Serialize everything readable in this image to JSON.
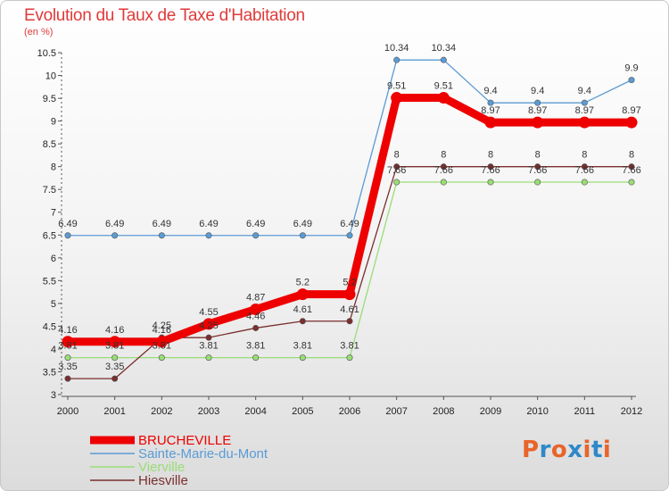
{
  "chart_data": {
    "type": "line",
    "title": "Evolution du Taux de Taxe d'Habitation",
    "subtitle": "(en %)",
    "x": [
      "2000",
      "2001",
      "2002",
      "2003",
      "2004",
      "2005",
      "2006",
      "2007",
      "2008",
      "2009",
      "2010",
      "2011",
      "2012"
    ],
    "ylim": [
      3,
      10.5
    ],
    "yticks": [
      "3",
      "3.5",
      "4",
      "4.5",
      "5",
      "5.5",
      "6",
      "6.5",
      "7",
      "7.5",
      "8",
      "8.5",
      "9",
      "9.5",
      "10",
      "10.5"
    ],
    "grid": false,
    "legend_position": "bottom-left",
    "series": [
      {
        "name": "BRUCHEVILLE",
        "color": "#ee0000",
        "values": [
          4.16,
          4.16,
          4.16,
          4.55,
          4.87,
          5.2,
          5.2,
          9.51,
          9.51,
          8.97,
          8.97,
          8.97,
          8.97
        ],
        "labels": [
          "4.16",
          "4.16",
          "4.16",
          "4.55",
          "4.87",
          "5.2",
          "5.2",
          "9.51",
          "9.51",
          "8.97",
          "8.97",
          "8.97",
          "8.97"
        ]
      },
      {
        "name": "Sainte-Marie-du-Mont",
        "color": "#5a9bd4",
        "values": [
          6.49,
          6.49,
          6.49,
          6.49,
          6.49,
          6.49,
          6.49,
          10.34,
          10.34,
          9.4,
          9.4,
          9.4,
          9.9
        ],
        "labels": [
          "6.49",
          "6.49",
          "6.49",
          "6.49",
          "6.49",
          "6.49",
          "6.49",
          "10.34",
          "10.34",
          "9.4",
          "9.4",
          "9.4",
          "9.9"
        ]
      },
      {
        "name": "Vierville",
        "color": "#99dd77",
        "values": [
          3.81,
          3.81,
          3.81,
          3.81,
          3.81,
          3.81,
          3.81,
          7.66,
          7.66,
          7.66,
          7.66,
          7.66,
          7.66
        ],
        "labels": [
          "3.81",
          "3.81",
          "3.81",
          "3.81",
          "3.81",
          "3.81",
          "3.81",
          "7.66",
          "7.66",
          "7.66",
          "7.66",
          "7.66",
          "7.66"
        ]
      },
      {
        "name": "Hiesville",
        "color": "#7a2e2e",
        "values": [
          3.35,
          3.35,
          4.25,
          4.25,
          4.46,
          4.61,
          4.61,
          8,
          8,
          8,
          8,
          8,
          8
        ],
        "labels": [
          "3.35",
          "3.35",
          "4.25",
          "4.25",
          "4.46",
          "4.61",
          "4.61",
          "8",
          "8",
          "8",
          "8",
          "8",
          "8"
        ]
      }
    ]
  },
  "logo": {
    "text": "Proxiti",
    "colors": [
      "#e8642a",
      "#2f88c8",
      "#e8642a",
      "#2f88c8",
      "#e8642a",
      "#2f88c8",
      "#e8642a"
    ]
  }
}
